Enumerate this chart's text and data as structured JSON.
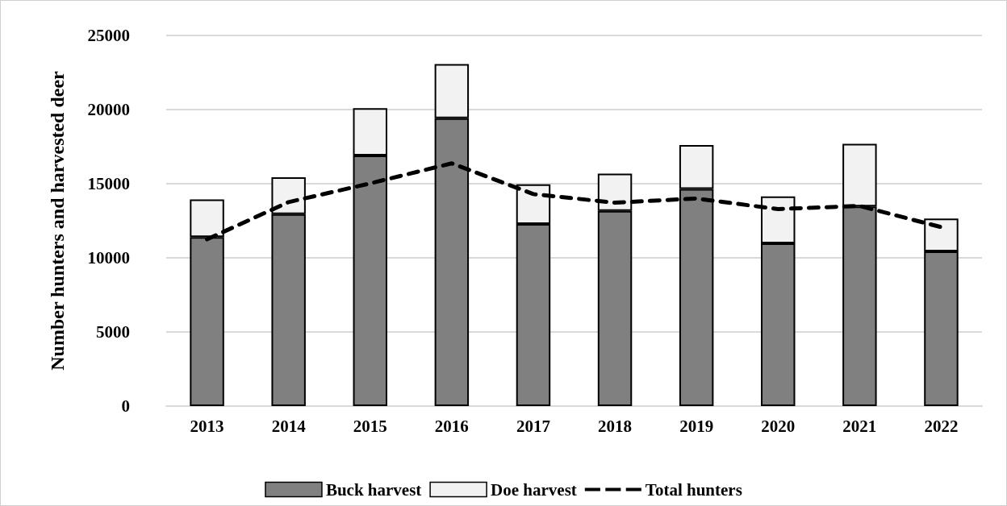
{
  "chart_data": {
    "type": "bar",
    "stacked": true,
    "ylabel": "Number hunters and harvested deer",
    "categories": [
      "2013",
      "2014",
      "2015",
      "2016",
      "2017",
      "2018",
      "2019",
      "2020",
      "2021",
      "2022"
    ],
    "series": [
      {
        "name": "Buck harvest",
        "color": "#808080",
        "values": [
          11400,
          12950,
          16900,
          19420,
          12280,
          13160,
          14640,
          10980,
          13460,
          10430
        ]
      },
      {
        "name": "Doe harvest",
        "color": "#f2f2f2",
        "values": [
          2540,
          2480,
          3190,
          3650,
          2680,
          2520,
          2970,
          3170,
          4230,
          2220
        ]
      },
      {
        "name": "Total hunters",
        "type": "line",
        "color": "#000000",
        "line_style": "dashed",
        "marker": "none",
        "values": [
          11250,
          13760,
          15020,
          16370,
          14300,
          13720,
          14000,
          13290,
          13500,
          12070
        ]
      }
    ],
    "ylim": [
      0,
      25000
    ],
    "yticks": [
      0,
      5000,
      10000,
      15000,
      20000,
      25000
    ],
    "grid": "y",
    "legend": "bottom"
  }
}
